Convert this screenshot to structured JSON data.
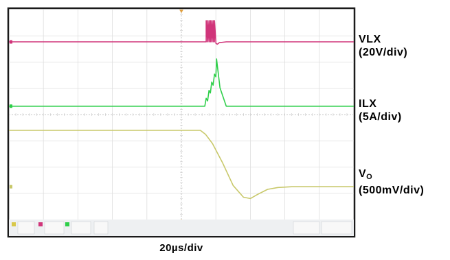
{
  "chart_data": {
    "type": "line",
    "title": "",
    "grid": true,
    "grid_divisions": {
      "x": 10,
      "y": 8
    },
    "x_axis": {
      "label": "20µs/div",
      "units": "div",
      "range": [
        0,
        10
      ]
    },
    "y_axis": {
      "units": "div",
      "range": [
        -4,
        4
      ]
    },
    "series": [
      {
        "name": "VLX",
        "scale": "(20V/div)",
        "color": "#d0357a",
        "x": [
          0,
          5.68,
          5.72,
          5.72,
          5.76,
          5.76,
          5.8,
          5.8,
          5.84,
          5.84,
          5.88,
          5.88,
          5.92,
          5.92,
          5.96,
          5.96,
          6.0,
          6.0,
          6.04,
          6.1,
          6.3,
          10
        ],
        "y": [
          2.77,
          2.77,
          2.77,
          3.58,
          2.77,
          3.58,
          2.77,
          3.58,
          2.77,
          3.58,
          2.77,
          3.58,
          2.77,
          3.58,
          2.77,
          3.58,
          2.77,
          2.72,
          2.68,
          2.74,
          2.77,
          2.77
        ]
      },
      {
        "name": "ILX",
        "scale": "(5A/div)",
        "color": "#2fcf4a",
        "x": [
          0,
          5.68,
          5.72,
          5.76,
          5.8,
          5.84,
          5.88,
          5.92,
          5.96,
          6.0,
          6.02,
          6.12,
          6.3,
          10
        ],
        "y": [
          0.32,
          0.32,
          0.62,
          0.52,
          0.92,
          0.82,
          1.24,
          1.12,
          1.54,
          1.44,
          2.12,
          1.02,
          0.32,
          0.32
        ]
      },
      {
        "name": "VO",
        "scale": "(500mV/div)",
        "color": "#c8c86a",
        "x": [
          0,
          5.55,
          5.7,
          5.9,
          6.2,
          6.5,
          6.8,
          7.0,
          7.2,
          7.5,
          7.8,
          8.2,
          8.6,
          10
        ],
        "y": [
          -0.6,
          -0.6,
          -0.75,
          -1.1,
          -1.85,
          -2.7,
          -3.15,
          -3.2,
          -3.05,
          -2.85,
          -2.78,
          -2.75,
          -2.75,
          -2.75
        ]
      }
    ],
    "labels": {
      "vlx": {
        "line1": "VLX",
        "line2": "(20V/div)"
      },
      "ilx": {
        "line1": "ILX",
        "line2": "(5A/div)"
      },
      "vo": {
        "main": "V",
        "sub": "O",
        "line2": "(500mV/div)"
      },
      "timebase": "20µs/div"
    }
  }
}
